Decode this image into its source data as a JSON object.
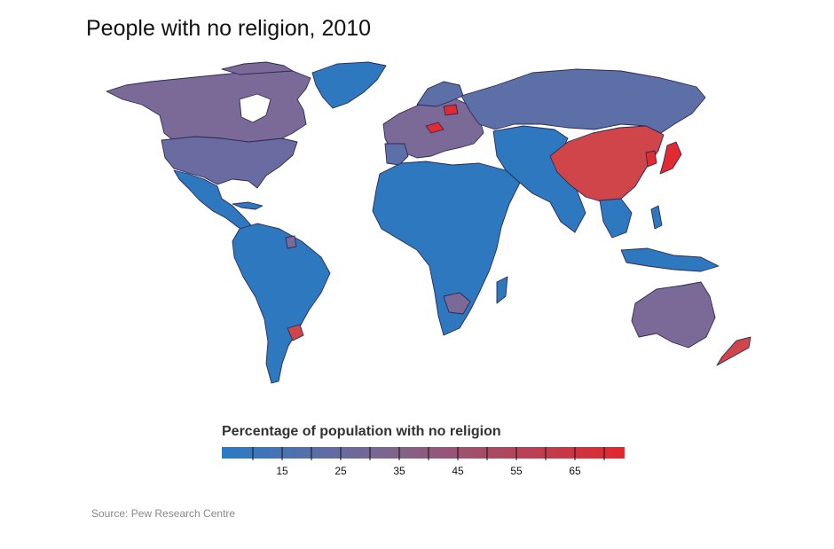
{
  "title": "People with no religion, 2010",
  "legend": {
    "title": "Percentage of population with no religion",
    "ticks": [
      "15",
      "25",
      "35",
      "45",
      "55",
      "65"
    ],
    "color_low": "#2a7ac6",
    "color_mid": "#7b6690",
    "color_high": "#e0282e"
  },
  "source": "Source: Pew Research Centre",
  "colors": {
    "low": "#2e78bf",
    "mid_blue": "#5c6fa6",
    "mid": "#776a96",
    "high": "#cf4549",
    "very_high": "#e22a33",
    "border": "#2b2b55"
  },
  "regions": [
    {
      "name": "North America (Canada, USA)",
      "level": "mid"
    },
    {
      "name": "Greenland",
      "level": "low"
    },
    {
      "name": "Mexico and Central America",
      "level": "low"
    },
    {
      "name": "South America",
      "level": "low"
    },
    {
      "name": "Uruguay",
      "level": "high"
    },
    {
      "name": "Western Europe",
      "level": "mid"
    },
    {
      "name": "Czech Republic",
      "level": "very_high"
    },
    {
      "name": "Estonia",
      "level": "very_high"
    },
    {
      "name": "Russia",
      "level": "mid_blue"
    },
    {
      "name": "Africa and Middle East",
      "level": "low"
    },
    {
      "name": "South Asia and Central Asia",
      "level": "low"
    },
    {
      "name": "China",
      "level": "high"
    },
    {
      "name": "Japan",
      "level": "very_high"
    },
    {
      "name": "North Korea",
      "level": "very_high"
    },
    {
      "name": "Southeast Asia",
      "level": "low"
    },
    {
      "name": "Australia",
      "level": "mid"
    },
    {
      "name": "New Zealand",
      "level": "high"
    }
  ]
}
